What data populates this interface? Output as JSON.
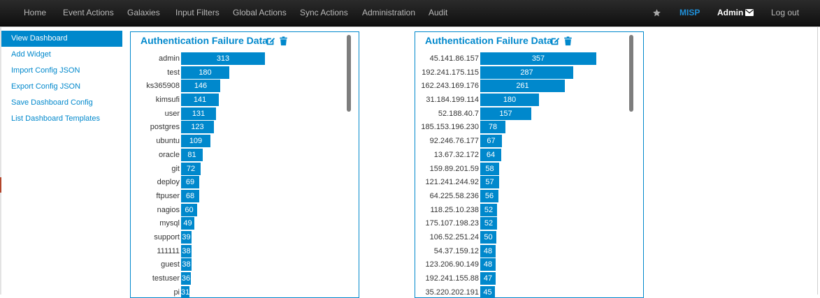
{
  "nav": {
    "items": [
      "Home",
      "Event Actions",
      "Galaxies",
      "Input Filters",
      "Global Actions",
      "Sync Actions",
      "Administration",
      "Audit"
    ],
    "brand": "MISP",
    "user": "Admin",
    "logout": "Log out"
  },
  "sidebar": {
    "items": [
      {
        "label": "View Dashboard",
        "active": true
      },
      {
        "label": "Add Widget",
        "active": false
      },
      {
        "label": "Import Config JSON",
        "active": false
      },
      {
        "label": "Export Config JSON",
        "active": false
      },
      {
        "label": "Save Dashboard Config",
        "active": false
      },
      {
        "label": "List Dashboard Templates",
        "active": false
      }
    ]
  },
  "colors": {
    "accent": "#0088cc",
    "navbar": "#1b1b1b",
    "nav_text": "#b9b9b9"
  },
  "widgets": [
    {
      "title": "Authentication Failure Data",
      "icons": [
        "edit-icon",
        "trash-icon"
      ],
      "rows": [
        {
          "label": "admin",
          "value": 313
        },
        {
          "label": "test",
          "value": 180
        },
        {
          "label": "ks365908",
          "value": 146
        },
        {
          "label": "kimsufi",
          "value": 141
        },
        {
          "label": "user",
          "value": 131
        },
        {
          "label": "postgres",
          "value": 123
        },
        {
          "label": "ubuntu",
          "value": 109
        },
        {
          "label": "oracle",
          "value": 81
        },
        {
          "label": "git",
          "value": 72
        },
        {
          "label": "deploy",
          "value": 69
        },
        {
          "label": "ftpuser",
          "value": 68
        },
        {
          "label": "nagios",
          "value": 60
        },
        {
          "label": "mysql",
          "value": 49
        },
        {
          "label": "support",
          "value": 39
        },
        {
          "label": "111111",
          "value": 38
        },
        {
          "label": "guest",
          "value": 38
        },
        {
          "label": "testuser",
          "value": 36
        },
        {
          "label": "pi",
          "value": 31
        }
      ]
    },
    {
      "title": "Authentication Failure Data",
      "icons": [
        "edit-icon",
        "trash-icon"
      ],
      "rows": [
        {
          "label": "45.141.86.157",
          "value": 357
        },
        {
          "label": "192.241.175.115",
          "value": 287
        },
        {
          "label": "162.243.169.176",
          "value": 261
        },
        {
          "label": "31.184.199.114",
          "value": 180
        },
        {
          "label": "52.188.40.7",
          "value": 157
        },
        {
          "label": "185.153.196.230",
          "value": 78
        },
        {
          "label": "92.246.76.177",
          "value": 67
        },
        {
          "label": "13.67.32.172",
          "value": 64
        },
        {
          "label": "159.89.201.59",
          "value": 58
        },
        {
          "label": "121.241.244.92",
          "value": 57
        },
        {
          "label": "64.225.58.236",
          "value": 56
        },
        {
          "label": "118.25.10.238",
          "value": 52
        },
        {
          "label": "175.107.198.23",
          "value": 52
        },
        {
          "label": "106.52.251.24",
          "value": 50
        },
        {
          "label": "54.37.159.12",
          "value": 48
        },
        {
          "label": "123.206.90.149",
          "value": 48
        },
        {
          "label": "192.241.155.88",
          "value": 47
        },
        {
          "label": "35.220.202.191",
          "value": 45
        }
      ]
    }
  ]
}
